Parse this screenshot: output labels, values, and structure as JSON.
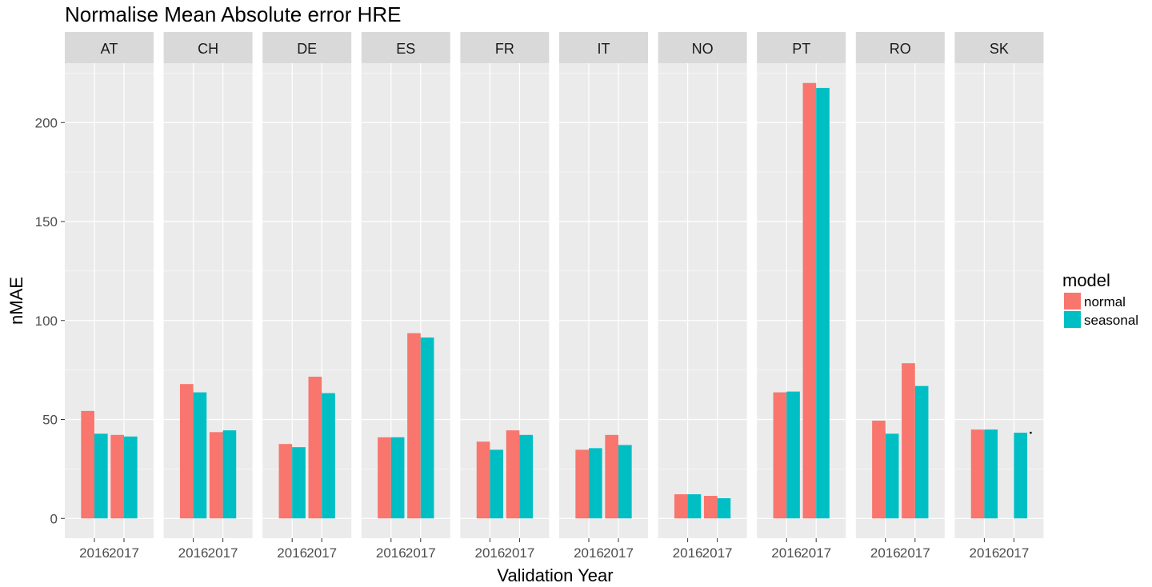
{
  "chart_data": {
    "type": "bar",
    "title": "Normalise Mean Absolute error HRE",
    "xlabel": "Validation Year",
    "ylabel": "nMAE",
    "ylim": [
      -10,
      230
    ],
    "yticks": [
      0,
      50,
      100,
      150,
      200
    ],
    "grid": true,
    "facets": [
      "AT",
      "CH",
      "DE",
      "ES",
      "FR",
      "IT",
      "NO",
      "PT",
      "RO",
      "SK"
    ],
    "categories": [
      "2016",
      "2017"
    ],
    "legend": {
      "title": "model",
      "position": "right",
      "entries": [
        "normal",
        "seasonal"
      ]
    },
    "series": [
      {
        "name": "normal",
        "color": "#F8766D",
        "values": {
          "AT": [
            54.3,
            42.2
          ],
          "CH": [
            67.9,
            43.6
          ],
          "DE": [
            37.6,
            71.6
          ],
          "ES": [
            41.0,
            93.6
          ],
          "FR": [
            38.8,
            44.5
          ],
          "IT": [
            34.7,
            42.2
          ],
          "NO": [
            12.2,
            11.4
          ],
          "PT": [
            63.7,
            220.0
          ],
          "RO": [
            49.4,
            78.4
          ],
          "SK": [
            44.9,
            null
          ]
        }
      },
      {
        "name": "seasonal",
        "color": "#00BFC4",
        "values": {
          "AT": [
            42.8,
            41.4
          ],
          "CH": [
            63.7,
            44.5
          ],
          "DE": [
            36.0,
            63.3
          ],
          "ES": [
            41.0,
            91.4
          ],
          "FR": [
            34.7,
            42.2
          ],
          "IT": [
            35.5,
            37.1
          ],
          "NO": [
            12.2,
            10.2
          ],
          "PT": [
            64.1,
            217.5
          ],
          "RO": [
            42.8,
            66.9
          ],
          "SK": [
            44.9,
            43.3
          ]
        }
      }
    ]
  }
}
